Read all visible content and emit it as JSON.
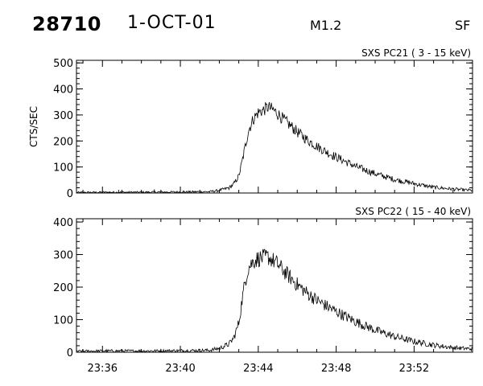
{
  "header": {
    "event_id": "28710",
    "date": "1-OCT-01",
    "flare_class": "M1.2",
    "station": "SF"
  },
  "chart_data": [
    {
      "type": "line",
      "title": "SXS PC21  (  3 - 15 keV)",
      "ylabel": "CTS/SEC",
      "xlabel": "",
      "ylim": [
        0,
        510
      ],
      "yticks": [
        "0",
        "100",
        "200",
        "300",
        "400",
        "500"
      ],
      "xlim": [
        "23:34:40",
        "23:55:00"
      ],
      "xticks": [
        "23:36",
        "23:40",
        "23:44",
        "23:48",
        "23:52"
      ],
      "show_xtick_labels": false,
      "noise": 8,
      "series": [
        {
          "x": [
            "23:34:40",
            "23:36:00",
            "23:38:00",
            "23:40:00",
            "23:41:30",
            "23:42:00",
            "23:42:30",
            "23:42:45",
            "23:43:00",
            "23:43:10",
            "23:43:20",
            "23:43:30",
            "23:43:45",
            "23:44:00",
            "23:44:15",
            "23:44:30",
            "23:44:45",
            "23:45:00",
            "23:45:20",
            "23:45:40",
            "23:46:00",
            "23:46:30",
            "23:47:00",
            "23:47:30",
            "23:48:00",
            "23:49:00",
            "23:50:00",
            "23:51:00",
            "23:52:00",
            "23:53:00",
            "23:54:00",
            "23:55:00"
          ],
          "y": [
            2,
            3,
            3,
            4,
            5,
            10,
            20,
            35,
            65,
            120,
            180,
            240,
            285,
            310,
            318,
            330,
            320,
            305,
            280,
            258,
            235,
            205,
            180,
            158,
            138,
            102,
            74,
            52,
            36,
            22,
            15,
            10
          ]
        }
      ],
      "spikes": [
        [
          "23:36:50",
          12
        ],
        [
          "23:38:40",
          14
        ],
        [
          "23:40:10",
          10
        ]
      ]
    },
    {
      "type": "line",
      "title": "SXS PC22  ( 15 - 40 keV)",
      "ylabel": "",
      "xlabel": "",
      "ylim": [
        0,
        410
      ],
      "yticks": [
        "0",
        "100",
        "200",
        "300",
        "400"
      ],
      "xlim": [
        "23:34:40",
        "23:55:00"
      ],
      "xticks": [
        "23:36",
        "23:40",
        "23:44",
        "23:48",
        "23:52"
      ],
      "show_xtick_labels": true,
      "noise": 9,
      "series": [
        {
          "x": [
            "23:34:40",
            "23:36:00",
            "23:38:00",
            "23:40:00",
            "23:41:30",
            "23:42:00",
            "23:42:30",
            "23:42:45",
            "23:43:00",
            "23:43:10",
            "23:43:20",
            "23:43:30",
            "23:43:45",
            "23:44:00",
            "23:44:15",
            "23:44:30",
            "23:44:45",
            "23:45:00",
            "23:45:20",
            "23:45:40",
            "23:46:00",
            "23:46:30",
            "23:47:00",
            "23:47:30",
            "23:48:00",
            "23:49:00",
            "23:50:00",
            "23:51:00",
            "23:52:00",
            "23:53:00",
            "23:54:00",
            "23:55:00"
          ],
          "y": [
            3,
            4,
            4,
            5,
            6,
            12,
            25,
            45,
            90,
            160,
            220,
            260,
            280,
            288,
            290,
            293,
            282,
            270,
            248,
            228,
            208,
            182,
            160,
            142,
            125,
            94,
            68,
            48,
            33,
            22,
            14,
            10
          ]
        }
      ],
      "spikes": []
    }
  ]
}
